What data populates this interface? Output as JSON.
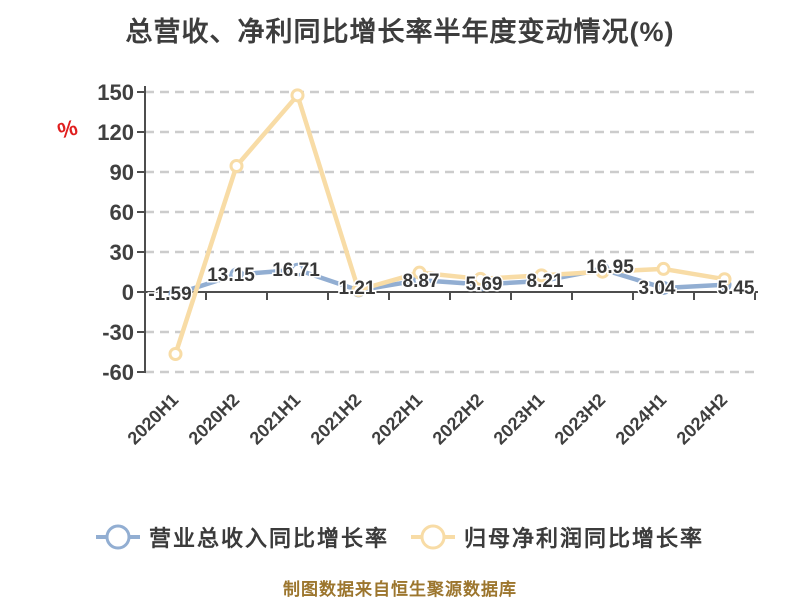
{
  "title": "总营收、净利同比增长率半年度变动情况(%)",
  "footer": "制图数据来自恒生聚源数据库",
  "colors": {
    "title_text": "#3d3d3d",
    "axis_text": "#404040",
    "axis_line": "#4d4d4d",
    "gridline": "#cccccc",
    "revenue_series": "#92aed2",
    "profit_series": "#f8dca6",
    "marker_fill": "#ffffff",
    "unit_label": "#e01e1e",
    "footer_text": "#9c762e",
    "data_label_text": "#383838"
  },
  "legend": {
    "items": [
      {
        "label": "营业总收入同比增长率",
        "color": "#92aed2"
      },
      {
        "label": "归母净利润同比增长率",
        "color": "#f8dca6"
      }
    ]
  },
  "chart_data": {
    "type": "line",
    "title": "总营收、净利同比增长率半年度变动情况(%)",
    "categories": [
      "2020H1",
      "2020H2",
      "2021H1",
      "2021H2",
      "2022H1",
      "2022H2",
      "2023H1",
      "2023H2",
      "2024H1",
      "2024H2"
    ],
    "series": [
      {
        "name": "营业总收入同比增长率",
        "color": "#92aed2",
        "values": [
          -1.59,
          13.15,
          16.71,
          1.21,
          8.87,
          5.69,
          8.21,
          16.95,
          3.04,
          5.45
        ],
        "labels_visible": true
      },
      {
        "name": "归母净利润同比增长率",
        "color": "#f8dca6",
        "values": [
          -46.5,
          94.5,
          147.5,
          1.5,
          14.5,
          9.8,
          12.5,
          15.2,
          17.3,
          9.6
        ],
        "labels_visible": false
      }
    ],
    "ylabel": "%",
    "ylim": [
      -60,
      150
    ],
    "yticks": [
      -60,
      -30,
      0,
      30,
      60,
      90,
      120,
      150
    ],
    "grid": true,
    "legend_position": "bottom"
  }
}
